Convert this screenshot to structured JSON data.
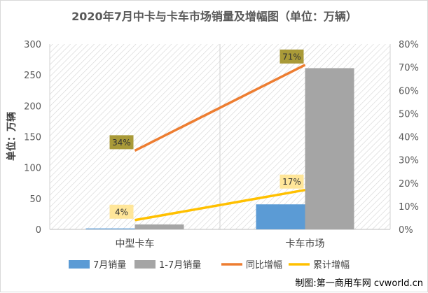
{
  "chart_data": {
    "type": "bar",
    "title": "2020年7月中卡与卡车市场销量及增幅图（单位：万辆）",
    "ylabel": "单位：万辆",
    "categories": [
      "中型卡车",
      "卡车市场"
    ],
    "ylim": [
      0,
      300
    ],
    "yticks": [
      0,
      50,
      100,
      150,
      200,
      250,
      300
    ],
    "y2lim": [
      0,
      0.8
    ],
    "y2ticks": [
      "0%",
      "10%",
      "20%",
      "30%",
      "40%",
      "50%",
      "60%",
      "70%",
      "80%"
    ],
    "grid": false,
    "legend_position": "bottom",
    "series": [
      {
        "name": "7月销量",
        "kind": "bar",
        "axis": "left",
        "color": "#5b9bd5",
        "values": [
          1.5,
          40.5
        ]
      },
      {
        "name": "1-7月销量",
        "kind": "bar",
        "axis": "left",
        "color": "#a5a5a5",
        "values": [
          8,
          261
        ]
      },
      {
        "name": "同比增幅",
        "kind": "line",
        "axis": "right",
        "color": "#ed7d31",
        "values": [
          0.34,
          0.71
        ],
        "labels": [
          "34%",
          "71%"
        ],
        "label_bg": "#a99a38"
      },
      {
        "name": "累计增幅",
        "kind": "line",
        "axis": "right",
        "color": "#ffc000",
        "values": [
          0.04,
          0.17
        ],
        "labels": [
          "4%",
          "17%"
        ],
        "label_bg": "#ffe699"
      }
    ]
  },
  "credit": "制图:第一商用车网 cvworld.cn"
}
